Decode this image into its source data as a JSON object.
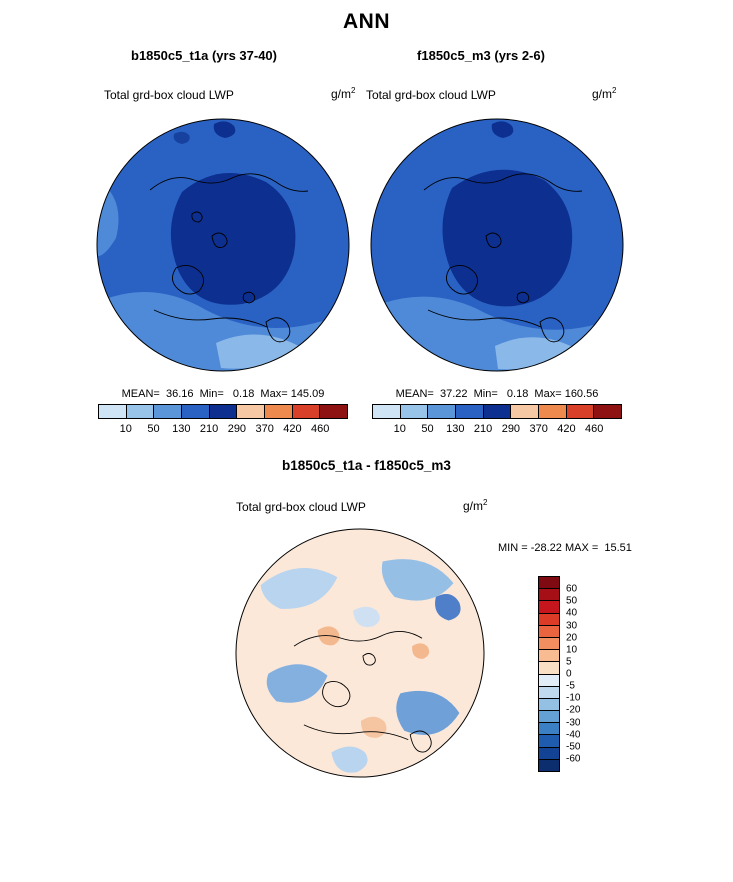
{
  "title": "ANN",
  "panels": [
    {
      "header": "b1850c5_t1a (yrs 37-40)",
      "field": "Total grd-box cloud LWP",
      "units_base": "g/m",
      "units_exp": "2",
      "stats_line": "MEAN=  36.16  Min=   0.18  Max= 145.09"
    },
    {
      "header": "f1850c5_m3 (yrs 2-6)",
      "field": "Total grd-box cloud LWP",
      "units_base": "g/m",
      "units_exp": "2",
      "stats_line": "MEAN=  37.22  Min=   0.18  Max= 160.56"
    }
  ],
  "colorbar": {
    "ticks": [
      "10",
      "50",
      "130",
      "210",
      "290",
      "370",
      "420",
      "460"
    ],
    "colors": [
      "#cfe4f5",
      "#97c4e8",
      "#5b96d8",
      "#2a62c4",
      "#0d2f8f",
      "#f6c9a4",
      "#ef8a4e",
      "#d8402a",
      "#8f1212"
    ]
  },
  "diff": {
    "header": "b1850c5_t1a - f1850c5_m3",
    "field": "Total grd-box cloud LWP",
    "units_base": "g/m",
    "units_exp": "2",
    "minmax_line": "MIN = -28.22 MAX =  15.51",
    "colorbar": {
      "labels": [
        "60",
        "50",
        "40",
        "30",
        "20",
        "10",
        "5",
        "0",
        "-5",
        "-10",
        "-20",
        "-30",
        "-40",
        "-50",
        "-60"
      ],
      "colors": [
        "#7f0a12",
        "#a50f15",
        "#c4161c",
        "#dc3b28",
        "#ea6440",
        "#f28e60",
        "#f8bb92",
        "#fbdfc5",
        "#e2edf8",
        "#c0d9ef",
        "#94c0e4",
        "#64a0d4",
        "#3b7fc4",
        "#1f5cb0",
        "#134394",
        "#0c2d6e"
      ]
    }
  },
  "chart_data": [
    {
      "type": "heatmap",
      "subtype": "polar-stereographic-map-north",
      "season": "ANN",
      "title": "b1850c5_t1a (yrs 37-40)",
      "variable": "Total grd-box cloud LWP",
      "units": "g/m^2",
      "stats": {
        "mean": 36.16,
        "min": 0.18,
        "max": 145.09
      },
      "colorbar_ticks": [
        10,
        50,
        130,
        210,
        290,
        370,
        420,
        460
      ],
      "legend_position": "below",
      "palette": "blue-to-red, blues dominate map; darkest blue region over central Arctic"
    },
    {
      "type": "heatmap",
      "subtype": "polar-stereographic-map-north",
      "season": "ANN",
      "title": "f1850c5_m3 (yrs 2-6)",
      "variable": "Total grd-box cloud LWP",
      "units": "g/m^2",
      "stats": {
        "mean": 37.22,
        "min": 0.18,
        "max": 160.56
      },
      "colorbar_ticks": [
        10,
        50,
        130,
        210,
        290,
        370,
        420,
        460
      ],
      "legend_position": "below",
      "palette": "blue-to-red, blues dominate map; darkest blue region over central Arctic"
    },
    {
      "type": "heatmap",
      "subtype": "polar-stereographic-map-north-difference",
      "season": "ANN",
      "title": "b1850c5_t1a - f1850c5_m3",
      "variable": "Total grd-box cloud LWP",
      "units": "g/m^2",
      "stats": {
        "min": -28.22,
        "max": 15.51
      },
      "colorbar_ticks": [
        60,
        50,
        40,
        30,
        20,
        10,
        5,
        0,
        -5,
        -10,
        -20,
        -30,
        -40,
        -50,
        -60
      ],
      "legend_position": "right",
      "palette": "diverging red (positive) to blue (negative), pale near zero; map mostly pale peach and light blue patches"
    }
  ]
}
